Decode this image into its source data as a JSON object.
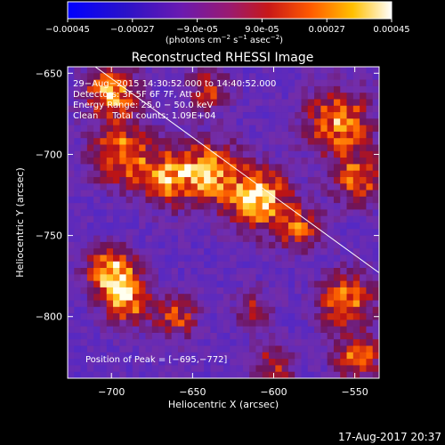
{
  "chart_data": {
    "type": "heatmap",
    "title": "Reconstructed RHESSI Image",
    "xlabel": "Heliocentric X (arcsec)",
    "ylabel": "Heliocentric Y (arcsec)",
    "xlim": [
      -727,
      -535
    ],
    "ylim": [
      -838,
      -646
    ],
    "xticks": [
      -700,
      -650,
      -600,
      -550
    ],
    "yticks": [
      -650,
      -700,
      -750,
      -800
    ],
    "xtick_labels": [
      "−700",
      "−650",
      "−600",
      "−550"
    ],
    "ytick_labels": [
      "−650",
      "−700",
      "−750",
      "−800"
    ],
    "colorbar": {
      "range": [
        -0.00045,
        0.00045
      ],
      "ticks": [
        -0.00045,
        -0.00027,
        -9e-05,
        9e-05,
        0.00027,
        0.00045
      ],
      "tick_labels": [
        "−0.00045",
        "−0.00027",
        "−9.0e-05",
        "9.0e-05",
        "0.00027",
        "0.00045"
      ],
      "units_prefix": "(photons cm",
      "units_exp1": "−2",
      "units_mid": " s",
      "units_exp2": "−1",
      "units_mid2": " asec",
      "units_exp3": "−2",
      "units_suffix": ")"
    },
    "annotations": [
      "29−Aug−2015 14:30:52.000 to 14:40:52.000",
      "Detectors: 3F 5F 6F 7F, Att 0",
      "Energy Range: 25.0 − 50.0 keV",
      "Clean     Total counts: 1.09E+04"
    ],
    "peak_label": "Position of Peak = [−695,−772]",
    "limb_line": {
      "x": [
        -710,
        -535
      ],
      "y": [
        -646,
        -773
      ]
    },
    "hotspots": [
      {
        "x": -700,
        "y": -662,
        "amp": 0.9,
        "r": 11
      },
      {
        "x": -693,
        "y": -700,
        "amp": 0.8,
        "r": 13
      },
      {
        "x": -665,
        "y": -715,
        "amp": 0.7,
        "r": 12
      },
      {
        "x": -640,
        "y": -710,
        "amp": 0.85,
        "r": 13
      },
      {
        "x": -610,
        "y": -727,
        "amp": 1.0,
        "r": 13
      },
      {
        "x": -585,
        "y": -745,
        "amp": 0.6,
        "r": 10
      },
      {
        "x": -700,
        "y": -772,
        "amp": 1.0,
        "r": 10
      },
      {
        "x": -690,
        "y": -790,
        "amp": 0.8,
        "r": 10
      },
      {
        "x": -660,
        "y": -800,
        "amp": 0.6,
        "r": 9
      },
      {
        "x": -560,
        "y": -680,
        "amp": 0.8,
        "r": 14
      },
      {
        "x": -548,
        "y": -715,
        "amp": 0.7,
        "r": 11
      },
      {
        "x": -555,
        "y": -790,
        "amp": 0.75,
        "r": 12
      },
      {
        "x": -548,
        "y": -825,
        "amp": 0.7,
        "r": 10
      },
      {
        "x": -600,
        "y": -830,
        "amp": 0.5,
        "r": 9
      },
      {
        "x": -612,
        "y": -795,
        "amp": 0.45,
        "r": 8
      },
      {
        "x": -640,
        "y": -660,
        "amp": 0.55,
        "r": 9
      }
    ]
  },
  "timestamp": "17-Aug-2017 20:37"
}
